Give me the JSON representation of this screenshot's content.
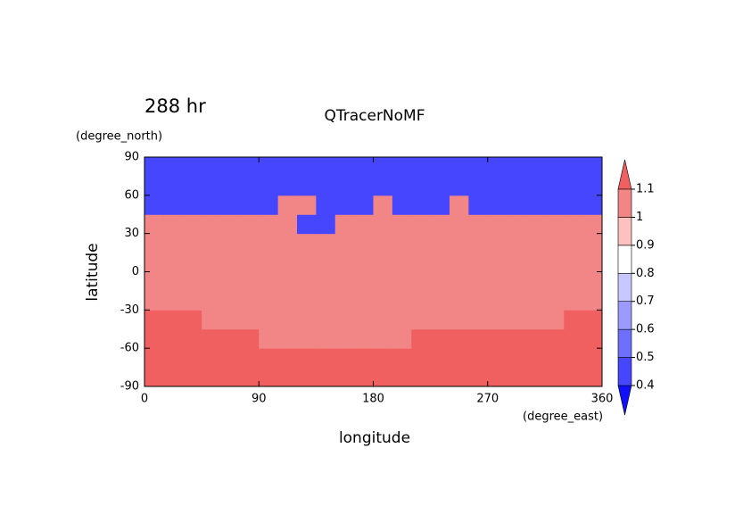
{
  "chart_data": {
    "type": "contour",
    "title": "QTracerNoMF",
    "time_label": "288 hr",
    "x_label": "longitude",
    "x_units": "(degree_east)",
    "y_label": "latitude",
    "y_units": "(degree_north)",
    "x": [
      7.5,
      22.5,
      37.5,
      52.5,
      67.5,
      82.5,
      97.5,
      112.5,
      127.5,
      142.5,
      157.5,
      172.5,
      187.5,
      202.5,
      217.5,
      232.5,
      247.5,
      262.5,
      277.5,
      292.5,
      307.5,
      322.5,
      337.5,
      352.5
    ],
    "y": [
      -82.5,
      -67.5,
      -52.5,
      -37.5,
      -22.5,
      -7.5,
      7.5,
      22.5,
      37.5,
      52.5,
      67.5,
      82.5
    ],
    "z": [
      [
        1.15,
        1.15,
        1.15,
        1.15,
        1.15,
        1.15,
        1.15,
        1.15,
        1.15,
        1.15,
        1.15,
        1.15,
        1.15,
        1.15,
        1.15,
        1.15,
        1.15,
        1.15,
        1.15,
        1.15,
        1.15,
        1.15,
        1.15,
        1.15
      ],
      [
        1.15,
        1.15,
        1.15,
        1.15,
        1.15,
        1.15,
        1.15,
        1.15,
        1.15,
        1.15,
        1.15,
        1.15,
        1.15,
        1.15,
        1.15,
        1.15,
        1.15,
        1.15,
        1.15,
        1.15,
        1.15,
        1.15,
        1.15,
        1.15
      ],
      [
        1.15,
        1.15,
        1.15,
        1.15,
        1.15,
        1.15,
        1.05,
        1.05,
        1.05,
        1.05,
        1.05,
        1.05,
        1.05,
        1.05,
        1.15,
        1.15,
        1.15,
        1.15,
        1.15,
        1.15,
        1.15,
        1.15,
        1.15,
        1.15
      ],
      [
        1.15,
        1.15,
        1.15,
        1.05,
        1.05,
        1.05,
        1.05,
        1.05,
        1.05,
        1.05,
        1.05,
        1.05,
        1.05,
        1.05,
        1.05,
        1.05,
        1.05,
        1.05,
        1.05,
        1.05,
        1.05,
        1.05,
        1.15,
        1.15
      ],
      [
        1.05,
        1.05,
        1.05,
        1.05,
        1.05,
        1.05,
        1.05,
        1.05,
        1.05,
        1.05,
        1.05,
        1.05,
        1.05,
        1.05,
        1.05,
        1.05,
        1.05,
        1.05,
        1.05,
        1.05,
        1.05,
        1.05,
        1.05,
        1.05
      ],
      [
        1.05,
        1.05,
        1.05,
        1.05,
        1.05,
        1.05,
        1.05,
        1.05,
        1.05,
        1.05,
        1.05,
        1.05,
        1.05,
        1.05,
        1.05,
        1.05,
        1.05,
        1.05,
        1.05,
        1.05,
        1.05,
        1.05,
        1.05,
        1.05
      ],
      [
        1.05,
        1.05,
        1.05,
        1.05,
        1.05,
        1.05,
        1.05,
        1.05,
        1.05,
        1.05,
        1.05,
        1.05,
        1.05,
        1.05,
        1.05,
        1.05,
        1.05,
        1.05,
        1.05,
        1.05,
        1.05,
        1.05,
        1.05,
        1.05
      ],
      [
        1.05,
        1.05,
        1.05,
        1.05,
        1.05,
        1.05,
        1.05,
        1.05,
        1.05,
        1.05,
        1.05,
        1.05,
        1.05,
        1.05,
        1.05,
        1.05,
        1.05,
        1.05,
        1.05,
        1.05,
        1.05,
        1.05,
        1.05,
        1.05
      ],
      [
        1.05,
        1.05,
        1.05,
        1.05,
        1.05,
        1.05,
        1.05,
        1.05,
        0.45,
        0.45,
        1.05,
        1.05,
        1.05,
        1.05,
        1.05,
        1.05,
        1.05,
        1.05,
        1.05,
        1.05,
        1.05,
        1.05,
        1.05,
        1.05
      ],
      [
        0.45,
        0.45,
        0.45,
        0.45,
        0.45,
        0.45,
        0.45,
        1.05,
        1.05,
        0.45,
        0.45,
        0.45,
        1.05,
        0.45,
        0.45,
        0.45,
        1.05,
        0.45,
        0.45,
        0.45,
        0.45,
        0.45,
        0.45,
        0.45
      ],
      [
        0.45,
        0.45,
        0.45,
        0.45,
        0.45,
        0.45,
        0.45,
        0.45,
        0.45,
        0.45,
        0.45,
        0.45,
        0.45,
        0.45,
        0.45,
        0.45,
        0.45,
        0.45,
        0.45,
        0.45,
        0.45,
        0.45,
        0.45,
        0.45
      ],
      [
        0.45,
        0.45,
        0.45,
        0.45,
        0.45,
        0.45,
        0.45,
        0.45,
        0.45,
        0.45,
        0.45,
        0.45,
        0.45,
        0.45,
        0.45,
        0.45,
        0.45,
        0.45,
        0.45,
        0.45,
        0.45,
        0.45,
        0.45,
        0.45
      ]
    ],
    "xlim": [
      0,
      360
    ],
    "ylim": [
      -90,
      90
    ],
    "xticks": [
      0,
      90,
      180,
      270,
      360
    ],
    "yticks": [
      -90,
      -60,
      -30,
      0,
      30,
      60,
      90
    ],
    "levels": [
      0.4,
      0.5,
      0.6,
      0.7,
      0.8,
      0.9,
      1,
      1.1
    ],
    "colors": [
      "#1010ff",
      "#4646ff",
      "#6e6eff",
      "#9a9aff",
      "#c8c8ff",
      "#ffffff",
      "#ffc0c0",
      "#f28585",
      "#f06060"
    ]
  }
}
